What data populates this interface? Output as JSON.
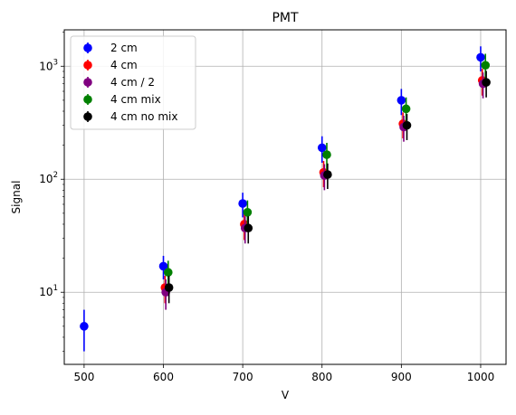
{
  "chart_data": {
    "type": "scatter",
    "title": "PMT",
    "xlabel": "V",
    "ylabel": "Signal",
    "xlim": [
      475,
      1032
    ],
    "ylim": [
      2.3,
      2100
    ],
    "yscale": "log",
    "grid": true,
    "legend_position": "top-left",
    "x_ticks": [
      500,
      600,
      700,
      800,
      900,
      1000
    ],
    "x_tick_labels": [
      "500",
      "600",
      "700",
      "800",
      "900",
      "1000"
    ],
    "y_ticks": [
      10,
      100,
      1000
    ],
    "y_tick_labels": [
      "10",
      "10",
      "10"
    ],
    "y_tick_exponents": [
      "1",
      "2",
      "3"
    ],
    "series": [
      {
        "name": "2 cm",
        "color": "#0000ff",
        "x": [
          500,
          600,
          700,
          800,
          900,
          1000
        ],
        "y": [
          5,
          17,
          61,
          190,
          500,
          1200
        ],
        "err": [
          2,
          4,
          15,
          50,
          130,
          300
        ]
      },
      {
        "name": "4 cm",
        "color": "#ff0000",
        "x": [
          602,
          702,
          802,
          902,
          1002
        ],
        "y": [
          11,
          40,
          115,
          310,
          750
        ],
        "err": [
          3,
          11,
          30,
          80,
          200
        ]
      },
      {
        "name": "4 cm / 2",
        "color": "#800080",
        "x": [
          603,
          703,
          803,
          903,
          1003
        ],
        "y": [
          10,
          37,
          108,
          290,
          700
        ],
        "err": [
          3,
          10,
          28,
          75,
          180
        ]
      },
      {
        "name": "4 cm mix",
        "color": "#008000",
        "x": [
          606,
          706,
          806,
          906,
          1006
        ],
        "y": [
          15,
          51,
          165,
          420,
          1020
        ],
        "err": [
          4,
          14,
          45,
          110,
          270
        ]
      },
      {
        "name": "4 cm no mix",
        "color": "#000000",
        "x": [
          607,
          707,
          807,
          907,
          1007
        ],
        "y": [
          11,
          37,
          110,
          300,
          720
        ],
        "err": [
          3,
          10,
          28,
          78,
          190
        ]
      }
    ]
  }
}
